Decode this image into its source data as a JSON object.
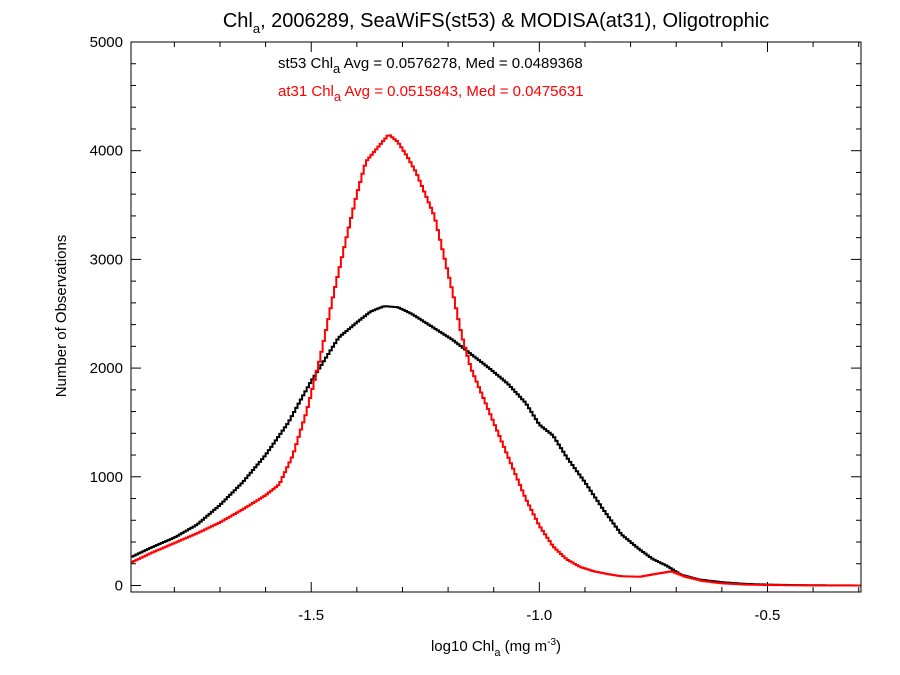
{
  "chart_data": {
    "type": "line",
    "title": {
      "pre": "Chl",
      "sub": "a",
      "post": ", 2006289, SeaWiFS(st53) & MODISA(at31), Oligotrophic"
    },
    "xlabel": {
      "pre": "log10 Chl",
      "sub": "a",
      "mid": " (mg m",
      "sup": "-3",
      "post": ")"
    },
    "ylabel": "Number of Observations",
    "xlim": [
      -1.895,
      -0.295
    ],
    "ylim": [
      -60,
      5000
    ],
    "xticks": [
      -1.5,
      -1.0,
      -0.5
    ],
    "xtick_labels": [
      "-1.5",
      "-1.0",
      "-0.5"
    ],
    "yticks": [
      0,
      1000,
      2000,
      3000,
      4000,
      5000
    ],
    "ytick_labels": [
      "0",
      "1000",
      "2000",
      "3000",
      "4000",
      "5000"
    ],
    "grid": false,
    "series": [
      {
        "name": "st53",
        "color": "#000000",
        "annotation": {
          "pre": "st53 Chl",
          "sub": "a",
          "post": " Avg = 0.0576278, Med = 0.0489368"
        },
        "points": [
          [
            -1.895,
            260
          ],
          [
            -1.85,
            350
          ],
          [
            -1.8,
            440
          ],
          [
            -1.75,
            560
          ],
          [
            -1.7,
            740
          ],
          [
            -1.65,
            950
          ],
          [
            -1.6,
            1200
          ],
          [
            -1.55,
            1500
          ],
          [
            -1.52,
            1730
          ],
          [
            -1.5,
            1880
          ],
          [
            -1.47,
            2080
          ],
          [
            -1.44,
            2280
          ],
          [
            -1.4,
            2420
          ],
          [
            -1.37,
            2520
          ],
          [
            -1.34,
            2570
          ],
          [
            -1.31,
            2560
          ],
          [
            -1.28,
            2500
          ],
          [
            -1.25,
            2420
          ],
          [
            -1.22,
            2340
          ],
          [
            -1.19,
            2260
          ],
          [
            -1.15,
            2130
          ],
          [
            -1.11,
            2000
          ],
          [
            -1.07,
            1860
          ],
          [
            -1.03,
            1680
          ],
          [
            -1.0,
            1480
          ],
          [
            -0.97,
            1380
          ],
          [
            -0.94,
            1180
          ],
          [
            -0.9,
            950
          ],
          [
            -0.86,
            700
          ],
          [
            -0.82,
            470
          ],
          [
            -0.78,
            330
          ],
          [
            -0.75,
            240
          ],
          [
            -0.72,
            180
          ],
          [
            -0.69,
            100
          ],
          [
            -0.65,
            55
          ],
          [
            -0.6,
            30
          ],
          [
            -0.55,
            15
          ],
          [
            -0.5,
            8
          ],
          [
            -0.45,
            4
          ],
          [
            -0.4,
            2
          ],
          [
            -0.35,
            1
          ],
          [
            -0.295,
            0
          ]
        ]
      },
      {
        "name": "at31",
        "color": "#ff0000",
        "annotation": {
          "pre": "at31 Chl",
          "sub": "a",
          "post": " Avg = 0.0515843, Med = 0.0475631"
        },
        "points": [
          [
            -1.895,
            210
          ],
          [
            -1.85,
            300
          ],
          [
            -1.8,
            390
          ],
          [
            -1.75,
            480
          ],
          [
            -1.7,
            580
          ],
          [
            -1.65,
            700
          ],
          [
            -1.6,
            830
          ],
          [
            -1.57,
            930
          ],
          [
            -1.54,
            1200
          ],
          [
            -1.51,
            1600
          ],
          [
            -1.48,
            2100
          ],
          [
            -1.45,
            2700
          ],
          [
            -1.42,
            3250
          ],
          [
            -1.4,
            3600
          ],
          [
            -1.38,
            3900
          ],
          [
            -1.36,
            4000
          ],
          [
            -1.34,
            4100
          ],
          [
            -1.33,
            4150
          ],
          [
            -1.31,
            4080
          ],
          [
            -1.29,
            3950
          ],
          [
            -1.27,
            3800
          ],
          [
            -1.25,
            3600
          ],
          [
            -1.23,
            3400
          ],
          [
            -1.21,
            3050
          ],
          [
            -1.19,
            2700
          ],
          [
            -1.17,
            2300
          ],
          [
            -1.15,
            2000
          ],
          [
            -1.12,
            1700
          ],
          [
            -1.09,
            1400
          ],
          [
            -1.06,
            1100
          ],
          [
            -1.03,
            800
          ],
          [
            -1.0,
            550
          ],
          [
            -0.97,
            360
          ],
          [
            -0.94,
            240
          ],
          [
            -0.91,
            170
          ],
          [
            -0.88,
            130
          ],
          [
            -0.85,
            105
          ],
          [
            -0.82,
            85
          ],
          [
            -0.78,
            80
          ],
          [
            -0.74,
            110
          ],
          [
            -0.71,
            130
          ],
          [
            -0.68,
            80
          ],
          [
            -0.64,
            40
          ],
          [
            -0.6,
            20
          ],
          [
            -0.55,
            8
          ],
          [
            -0.5,
            4
          ],
          [
            -0.45,
            2
          ],
          [
            -0.4,
            1
          ],
          [
            -0.35,
            0
          ],
          [
            -0.295,
            0
          ]
        ]
      }
    ]
  }
}
